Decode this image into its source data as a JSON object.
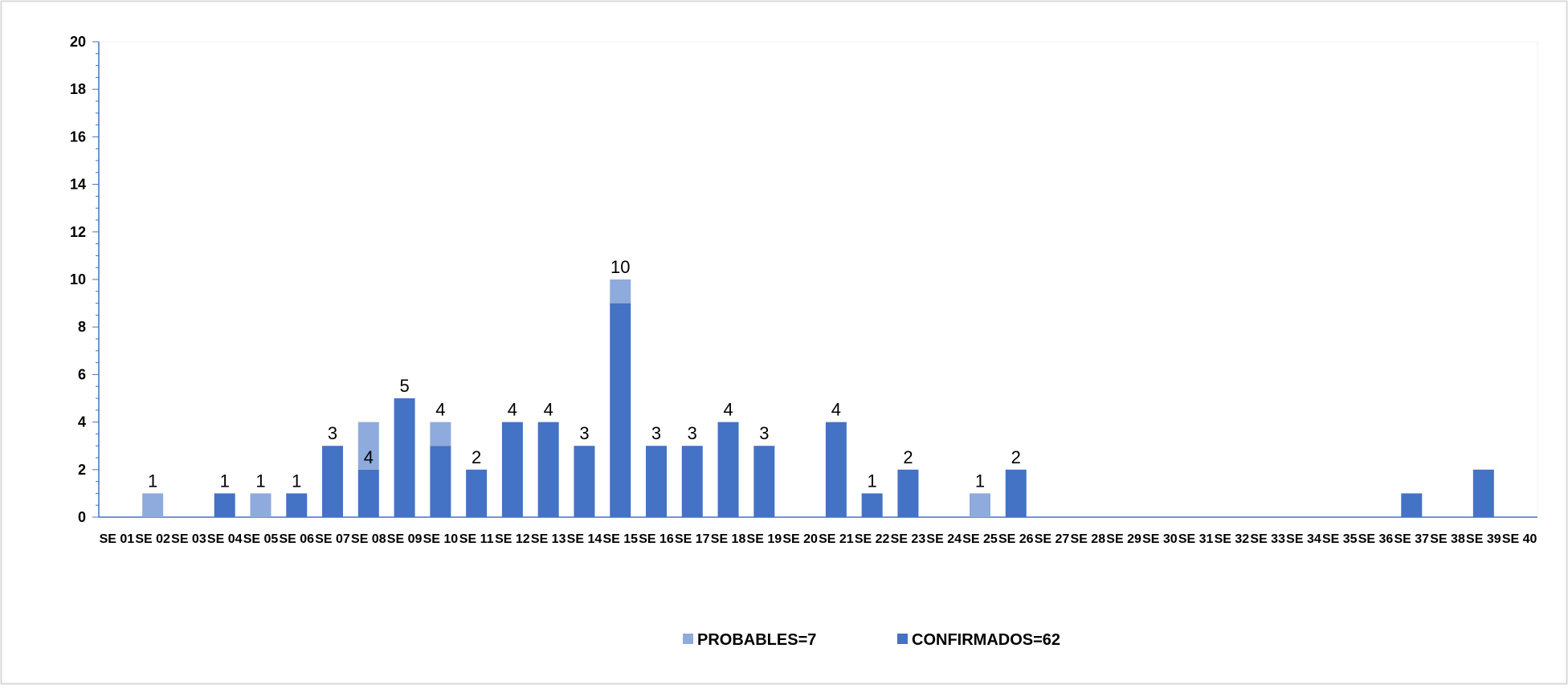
{
  "chart_data": {
    "type": "bar",
    "stacked": true,
    "categories": [
      "SE 01",
      "SE 02",
      "SE 03",
      "SE 04",
      "SE 05",
      "SE 06",
      "SE 07",
      "SE 08",
      "SE 09",
      "SE 10",
      "SE 11",
      "SE 12",
      "SE 13",
      "SE 14",
      "SE 15",
      "SE 16",
      "SE 17",
      "SE 18",
      "SE 19",
      "SE 20",
      "SE 21",
      "SE 22",
      "SE 23",
      "SE 24",
      "SE 25",
      "SE 26",
      "SE 27",
      "SE 28",
      "SE 29",
      "SE 30",
      "SE 31",
      "SE 32",
      "SE 33",
      "SE 34",
      "SE 35",
      "SE 36",
      "SE 37",
      "SE 38",
      "SE 39",
      "SE 40"
    ],
    "series": [
      {
        "name": "CONFIRMADOS=62",
        "color": "#4472c4",
        "values": [
          0,
          0,
          0,
          1,
          0,
          1,
          3,
          2,
          5,
          3,
          2,
          4,
          4,
          3,
          9,
          3,
          3,
          4,
          3,
          0,
          4,
          1,
          2,
          0,
          0,
          2,
          0,
          0,
          0,
          0,
          0,
          0,
          0,
          0,
          0,
          0,
          1,
          0,
          2,
          0
        ]
      },
      {
        "name": "PROBABLES=7",
        "color": "#8faadc",
        "values": [
          0,
          1,
          0,
          0,
          1,
          0,
          0,
          2,
          0,
          1,
          0,
          0,
          0,
          0,
          1,
          0,
          0,
          0,
          0,
          0,
          0,
          0,
          0,
          0,
          1,
          0,
          0,
          0,
          0,
          0,
          0,
          0,
          0,
          0,
          0,
          0,
          0,
          0,
          0,
          0
        ]
      }
    ],
    "data_labels": [
      {
        "index": 1,
        "text": "1",
        "at": "top"
      },
      {
        "index": 3,
        "text": "1",
        "at": "top"
      },
      {
        "index": 4,
        "text": "1",
        "at": "top"
      },
      {
        "index": 5,
        "text": "1",
        "at": "top"
      },
      {
        "index": 6,
        "text": "3",
        "at": "top"
      },
      {
        "index": 7,
        "text": "4",
        "at": "confirmed"
      },
      {
        "index": 8,
        "text": "5",
        "at": "top"
      },
      {
        "index": 9,
        "text": "4",
        "at": "top"
      },
      {
        "index": 10,
        "text": "2",
        "at": "confirmed"
      },
      {
        "index": 11,
        "text": "4",
        "at": "top"
      },
      {
        "index": 12,
        "text": "4",
        "at": "top"
      },
      {
        "index": 13,
        "text": "3",
        "at": "top"
      },
      {
        "index": 14,
        "text": "10",
        "at": "top"
      },
      {
        "index": 15,
        "text": "3",
        "at": "top"
      },
      {
        "index": 16,
        "text": "3",
        "at": "top"
      },
      {
        "index": 17,
        "text": "4",
        "at": "top"
      },
      {
        "index": 18,
        "text": "3",
        "at": "top"
      },
      {
        "index": 20,
        "text": "4",
        "at": "top"
      },
      {
        "index": 21,
        "text": "1",
        "at": "top"
      },
      {
        "index": 22,
        "text": "2",
        "at": "top"
      },
      {
        "index": 24,
        "text": "1",
        "at": "top"
      },
      {
        "index": 25,
        "text": "2",
        "at": "confirmed"
      }
    ],
    "ylim": [
      0,
      20
    ],
    "yticks": [
      0,
      2,
      4,
      6,
      8,
      10,
      12,
      14,
      16,
      18,
      20
    ],
    "grid": false,
    "legend_position": "bottom",
    "legend_order": [
      "PROBABLES=7",
      "CONFIRMADOS=62"
    ]
  }
}
